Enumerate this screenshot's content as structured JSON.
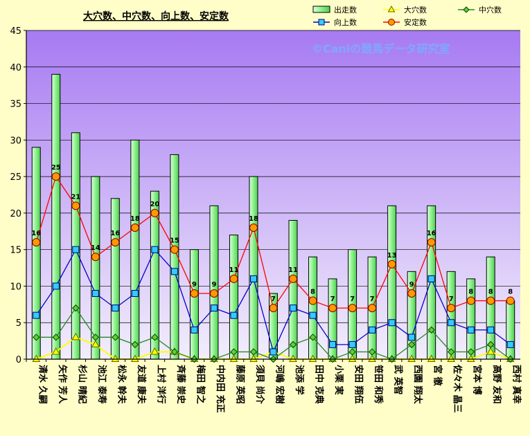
{
  "chart_data": {
    "type": "bar",
    "title": "大穴数、中穴数、向上数、安定数",
    "watermark": "©Caniの競馬データ研究室",
    "categories": [
      "清水 久嗣",
      "矢作 芳人",
      "杉山 晴紀",
      "池江 泰寿",
      "松永 幹夫",
      "友道 康夫",
      "上村 洋行",
      "斉藤 崇史",
      "梅田 智之",
      "中内田 充正",
      "藤原 英昭",
      "須貝 尚介",
      "河嶋 宏樹",
      "池添 学",
      "田中 克典",
      "小栗 実",
      "安田 翔伍",
      "笹田 和秀",
      "武 英智",
      "西園 翔太",
      "宮 徹",
      "佐々木 晶三",
      "宮本 博",
      "高野 友和",
      "西村 真幸"
    ],
    "ylim": [
      0,
      45
    ],
    "yticks": [
      0,
      5,
      10,
      15,
      20,
      25,
      30,
      35,
      40,
      45
    ],
    "grid": true,
    "legend_position": "top-right",
    "series": [
      {
        "name": "出走数",
        "kind": "bar",
        "color": "#90ee90",
        "values": [
          29,
          39,
          31,
          25,
          22,
          30,
          23,
          28,
          15,
          21,
          17,
          25,
          9,
          19,
          14,
          11,
          15,
          14,
          21,
          12,
          21,
          12,
          11,
          14,
          8
        ]
      },
      {
        "name": "大穴数",
        "kind": "line",
        "color": "#ffff00",
        "marker": "triangle",
        "values": [
          0,
          1,
          3,
          2,
          0,
          0,
          1,
          1,
          0,
          0,
          0,
          0,
          1,
          0,
          0,
          0,
          0,
          0,
          0,
          0,
          0,
          0,
          0,
          1,
          0
        ]
      },
      {
        "name": "中穴数",
        "kind": "line",
        "color": "#228b22",
        "marker": "diamond",
        "values": [
          3,
          3,
          7,
          3,
          3,
          2,
          3,
          1,
          0,
          0,
          1,
          1,
          0,
          2,
          3,
          0,
          1,
          1,
          0,
          2,
          4,
          1,
          1,
          2,
          0
        ]
      },
      {
        "name": "向上数",
        "kind": "line",
        "color": "#0000cd",
        "marker": "square",
        "values": [
          6,
          10,
          15,
          9,
          7,
          9,
          15,
          12,
          4,
          7,
          6,
          11,
          1,
          7,
          6,
          2,
          2,
          4,
          5,
          3,
          11,
          5,
          4,
          4,
          2
        ]
      },
      {
        "name": "安定数",
        "kind": "line",
        "color": "#ff0000",
        "marker": "circle",
        "values": [
          16,
          25,
          21,
          14,
          16,
          18,
          20,
          15,
          9,
          9,
          11,
          18,
          7,
          11,
          8,
          7,
          7,
          7,
          13,
          9,
          16,
          7,
          8,
          8,
          8
        ],
        "labels": true
      }
    ]
  }
}
